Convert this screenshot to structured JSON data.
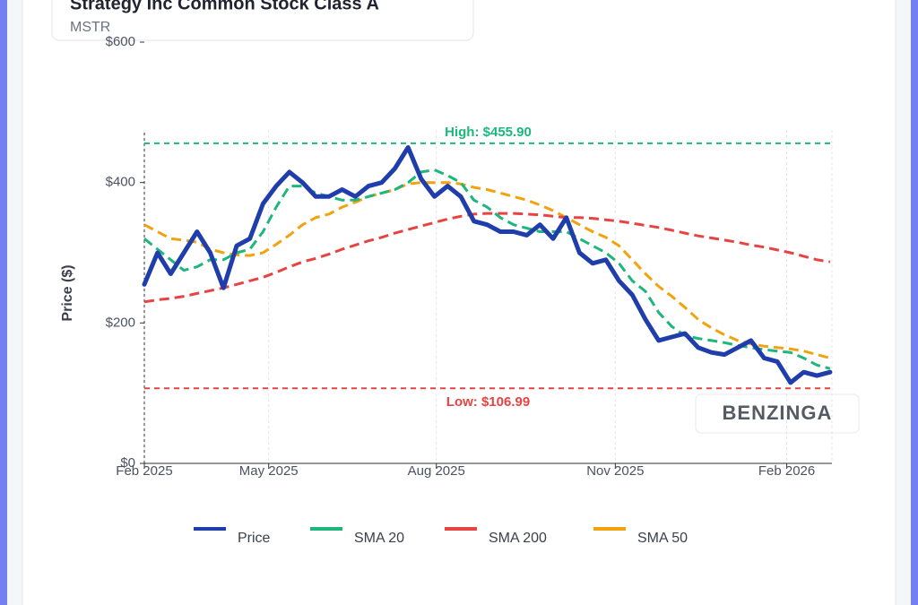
{
  "header": {
    "title": "Strategy Inc Common Stock Class A",
    "subtitle": "MSTR"
  },
  "watermark": "BENZINGA",
  "chart_data": {
    "type": "line",
    "ylabel": "Price ($)",
    "x": [
      0,
      7,
      14,
      21,
      28,
      35,
      42,
      49,
      56,
      63,
      70,
      77,
      84,
      91,
      98,
      105,
      112,
      119,
      126,
      133,
      140,
      147,
      154,
      161,
      168,
      175,
      182,
      189,
      196,
      203,
      210,
      217,
      224,
      231,
      238,
      245,
      252,
      259,
      266,
      273,
      280,
      287,
      294,
      301,
      308,
      315,
      322,
      329,
      336,
      343,
      350,
      357,
      364
    ],
    "xlim": [
      0,
      365
    ],
    "xticks": [
      {
        "value": 0,
        "label": "Feb 2025"
      },
      {
        "value": 66,
        "label": "May 2025"
      },
      {
        "value": 155,
        "label": "Aug 2025"
      },
      {
        "value": 250,
        "label": "Nov 2025"
      },
      {
        "value": 341,
        "label": "Feb 2026"
      }
    ],
    "ylim": [
      0,
      600
    ],
    "yticks": [
      {
        "value": 0,
        "label": "$0"
      },
      {
        "value": 200,
        "label": "$200"
      },
      {
        "value": 400,
        "label": "$400"
      },
      {
        "value": 600,
        "label": "$600"
      }
    ],
    "grid": true,
    "series": [
      {
        "name": "Price",
        "color": "#1f3eab",
        "dashed": false,
        "values": [
          255,
          300,
          270,
          300,
          330,
          300,
          250,
          310,
          320,
          370,
          395,
          415,
          400,
          380,
          380,
          390,
          380,
          395,
          400,
          420,
          450,
          405,
          380,
          395,
          380,
          345,
          340,
          330,
          330,
          325,
          340,
          320,
          350,
          300,
          285,
          290,
          260,
          240,
          205,
          175,
          180,
          185,
          165,
          158,
          155,
          165,
          175,
          150,
          145,
          115,
          130,
          125,
          130
        ]
      },
      {
        "name": "SMA 20",
        "color": "#1db67b",
        "dashed": true,
        "values": [
          320,
          305,
          290,
          275,
          280,
          290,
          290,
          300,
          305,
          330,
          365,
          395,
          395,
          385,
          380,
          375,
          375,
          380,
          385,
          390,
          400,
          415,
          418,
          410,
          400,
          375,
          365,
          350,
          340,
          335,
          330,
          330,
          330,
          320,
          310,
          300,
          285,
          260,
          245,
          215,
          195,
          182,
          178,
          175,
          172,
          168,
          165,
          162,
          160,
          158,
          150,
          140,
          135
        ]
      },
      {
        "name": "SMA 200",
        "color": "#e84343",
        "dashed": true,
        "values": [
          230,
          233,
          235,
          238,
          242,
          246,
          250,
          255,
          260,
          265,
          272,
          280,
          287,
          292,
          298,
          305,
          311,
          317,
          322,
          328,
          333,
          338,
          343,
          348,
          352,
          355,
          356,
          356,
          356,
          355,
          354,
          352,
          350,
          350,
          349,
          347,
          345,
          342,
          339,
          336,
          332,
          328,
          324,
          321,
          318,
          315,
          311,
          308,
          304,
          300,
          295,
          290,
          287
        ]
      },
      {
        "name": "SMA 50",
        "color": "#f2a20c",
        "dashed": true,
        "values": [
          340,
          330,
          320,
          318,
          315,
          305,
          300,
          297,
          296,
          300,
          312,
          325,
          340,
          350,
          355,
          365,
          372,
          380,
          385,
          390,
          398,
          400,
          400,
          400,
          398,
          393,
          390,
          385,
          380,
          375,
          368,
          360,
          350,
          340,
          330,
          322,
          310,
          290,
          270,
          252,
          238,
          222,
          205,
          193,
          183,
          175,
          170,
          167,
          165,
          163,
          160,
          155,
          150
        ]
      }
    ],
    "reference_lines": [
      {
        "value": 455.9,
        "label": "High: $455.90",
        "color": "#1db67b",
        "position": "above"
      },
      {
        "value": 106.99,
        "label": "Low: $106.99",
        "color": "#e84343",
        "position": "below"
      }
    ]
  }
}
